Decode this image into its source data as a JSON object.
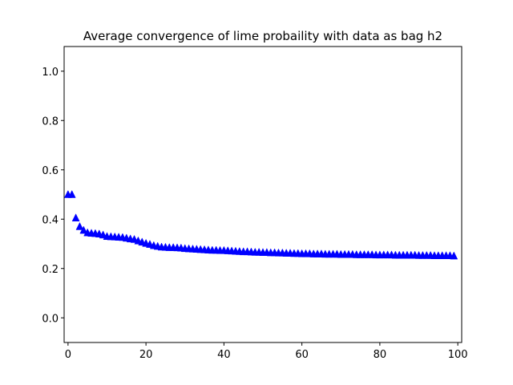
{
  "chart_data": {
    "type": "scatter",
    "title": "Average convergence of lime probaility with data as bag h2",
    "xlabel": "",
    "ylabel": "",
    "xlim": [
      -1,
      101
    ],
    "ylim": [
      -0.1,
      1.1
    ],
    "xticks": [
      0,
      20,
      40,
      60,
      80,
      100
    ],
    "xtick_labels": [
      "0",
      "20",
      "40",
      "60",
      "80",
      "100"
    ],
    "yticks": [
      0.0,
      0.2,
      0.4,
      0.6,
      0.8,
      1.0
    ],
    "ytick_labels": [
      "0.0",
      "0.2",
      "0.4",
      "0.6",
      "0.8",
      "1.0"
    ],
    "grid": false,
    "marker": "triangle-up",
    "color": "#0000ff",
    "series": [
      {
        "x": [
          0,
          1,
          2,
          3,
          4,
          5,
          6,
          7,
          8,
          9,
          10,
          11,
          12,
          13,
          14,
          15,
          16,
          17,
          18,
          19,
          20,
          21,
          22,
          23,
          24,
          25,
          26,
          27,
          28,
          29,
          30,
          31,
          32,
          33,
          34,
          35,
          36,
          37,
          38,
          39,
          40,
          41,
          42,
          43,
          44,
          45,
          46,
          47,
          48,
          49,
          50,
          51,
          52,
          53,
          54,
          55,
          56,
          57,
          58,
          59,
          60,
          61,
          62,
          63,
          64,
          65,
          66,
          67,
          68,
          69,
          70,
          71,
          72,
          73,
          74,
          75,
          76,
          77,
          78,
          79,
          80,
          81,
          82,
          83,
          84,
          85,
          86,
          87,
          88,
          89,
          90,
          91,
          92,
          93,
          94,
          95,
          96,
          97,
          98,
          99
        ],
        "y": [
          0.5,
          0.5,
          0.405,
          0.37,
          0.355,
          0.345,
          0.343,
          0.342,
          0.34,
          0.336,
          0.33,
          0.329,
          0.328,
          0.327,
          0.326,
          0.323,
          0.32,
          0.318,
          0.312,
          0.307,
          0.302,
          0.298,
          0.293,
          0.29,
          0.287,
          0.286,
          0.285,
          0.285,
          0.284,
          0.283,
          0.281,
          0.28,
          0.279,
          0.278,
          0.277,
          0.276,
          0.275,
          0.274,
          0.274,
          0.273,
          0.273,
          0.272,
          0.271,
          0.27,
          0.269,
          0.268,
          0.268,
          0.267,
          0.266,
          0.266,
          0.265,
          0.265,
          0.264,
          0.264,
          0.263,
          0.263,
          0.262,
          0.262,
          0.261,
          0.261,
          0.26,
          0.26,
          0.26,
          0.259,
          0.259,
          0.259,
          0.258,
          0.258,
          0.258,
          0.258,
          0.257,
          0.257,
          0.257,
          0.257,
          0.256,
          0.256,
          0.256,
          0.256,
          0.256,
          0.255,
          0.255,
          0.255,
          0.255,
          0.255,
          0.254,
          0.254,
          0.254,
          0.254,
          0.254,
          0.254,
          0.253,
          0.253,
          0.253,
          0.253,
          0.252,
          0.252,
          0.252,
          0.252,
          0.252,
          0.251
        ]
      }
    ]
  }
}
